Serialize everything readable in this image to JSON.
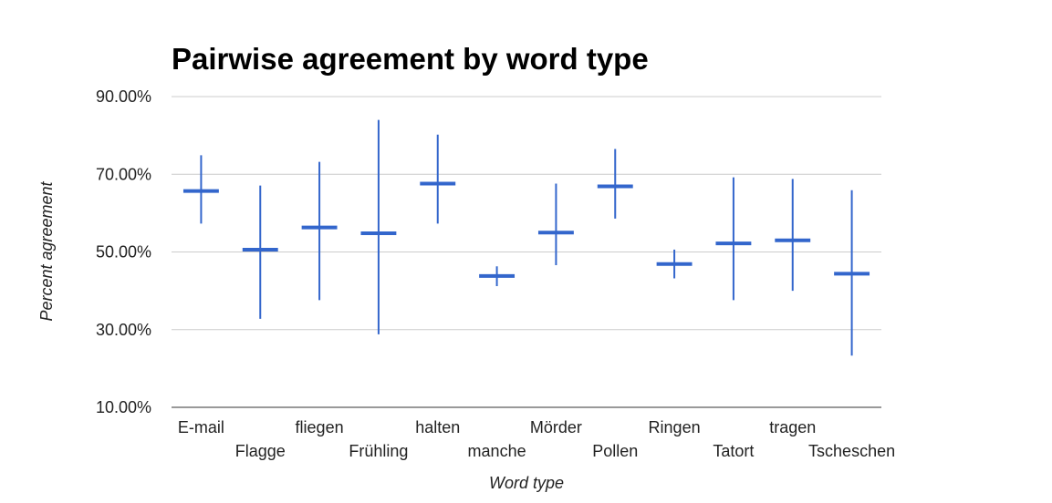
{
  "chart_data": {
    "type": "candlestick",
    "title": "Pairwise agreement by word type",
    "xlabel": "Word type",
    "ylabel": "Percent agreement",
    "ylim": [
      10,
      90
    ],
    "yticks": [
      "10.00%",
      "30.00%",
      "50.00%",
      "70.00%",
      "90.00%"
    ],
    "grid": true,
    "legend": "none",
    "color": "#3366cc",
    "categories": [
      "E-mail",
      "Flagge",
      "fliegen",
      "Frühling",
      "halten",
      "manche",
      "Mörder",
      "Pollen",
      "Ringen",
      "Tatort",
      "tragen",
      "Tscheschen"
    ],
    "mean": [
      65.7,
      50.6,
      56.3,
      54.8,
      67.6,
      43.8,
      55.0,
      66.9,
      46.9,
      52.2,
      53.0,
      44.4
    ],
    "low": [
      57.3,
      32.8,
      37.6,
      28.8,
      57.3,
      41.2,
      46.6,
      58.6,
      43.2,
      37.6,
      40.0,
      23.3
    ],
    "high": [
      74.9,
      67.1,
      73.2,
      84.0,
      80.2,
      46.3,
      67.6,
      76.5,
      50.6,
      69.2,
      68.8,
      65.9
    ]
  }
}
